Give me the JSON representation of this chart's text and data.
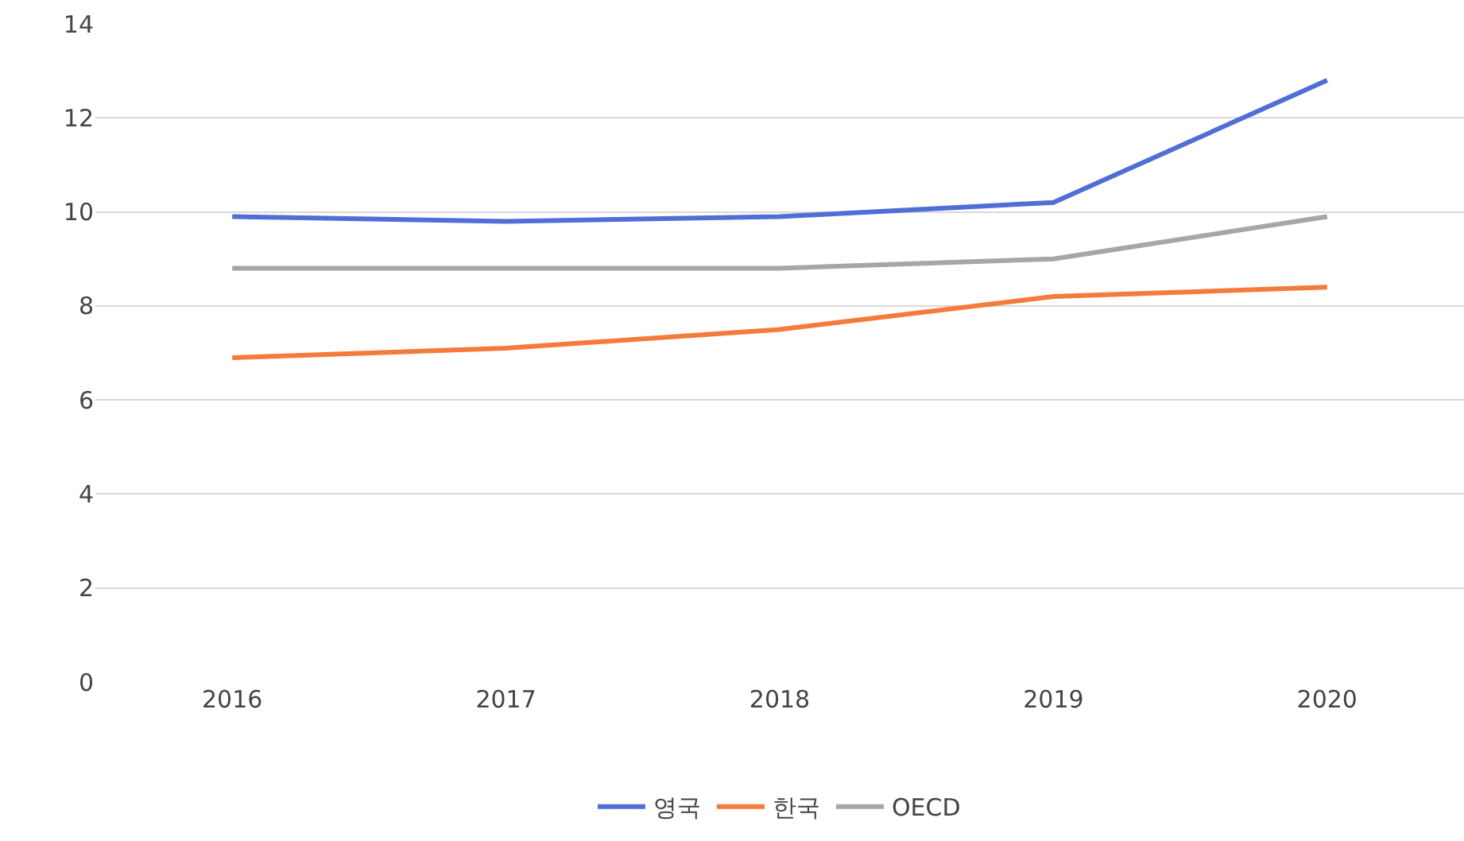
{
  "chart_data": {
    "type": "line",
    "categories": [
      "2016",
      "2017",
      "2018",
      "2019",
      "2020"
    ],
    "series": [
      {
        "name": "영국",
        "color": "#4f6fd6",
        "values": [
          9.9,
          9.8,
          9.9,
          10.2,
          12.8
        ]
      },
      {
        "name": "한국",
        "color": "#f47b3c",
        "values": [
          6.9,
          7.1,
          7.5,
          8.2,
          8.4
        ]
      },
      {
        "name": "OECD",
        "color": "#a6a6a6",
        "values": [
          8.8,
          8.8,
          8.8,
          9.0,
          9.9
        ]
      }
    ],
    "ylim": [
      0,
      14
    ],
    "yticks": [
      0,
      2,
      4,
      6,
      8,
      10,
      12,
      14
    ],
    "grid": "y",
    "legend": "bottom",
    "marker": "none",
    "line_style": "solid"
  }
}
